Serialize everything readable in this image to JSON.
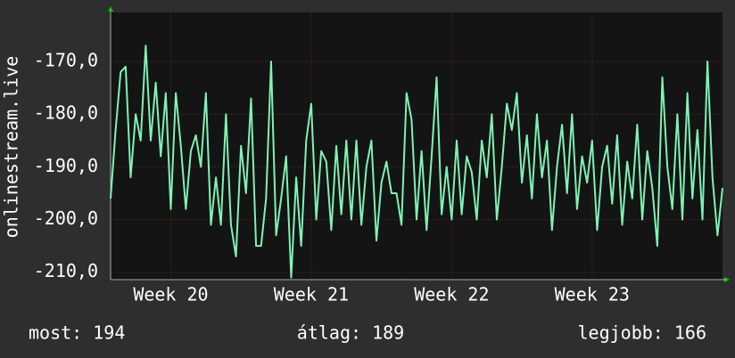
{
  "chart_data": {
    "type": "line",
    "y_label": "onlinestream.live",
    "footer": [
      "most: 194",
      "átlag: 189",
      "legjobb: 166"
    ],
    "x": [
      0,
      0.25,
      0.5,
      0.75,
      1,
      1.25,
      1.5,
      1.75,
      2,
      2.25,
      2.5,
      2.75,
      3,
      3.25,
      3.5,
      3.75,
      4,
      4.25,
      4.5,
      4.75,
      5,
      5.25,
      5.5,
      5.75,
      6,
      6.25,
      6.5,
      6.75,
      7,
      7.25,
      7.5,
      7.75,
      8,
      8.25,
      8.5,
      8.75,
      9,
      9.25,
      9.5,
      9.75,
      10,
      10.25,
      10.5,
      10.75,
      11,
      11.25,
      11.5,
      11.75,
      12,
      12.25,
      12.5,
      12.75,
      13,
      13.25,
      13.5,
      13.75,
      14,
      14.25,
      14.5,
      14.75,
      15,
      15.25,
      15.5,
      15.75,
      16,
      16.25,
      16.5,
      16.75,
      17,
      17.25,
      17.5,
      17.75,
      18,
      18.25,
      18.5,
      18.75,
      19,
      19.25,
      19.5,
      19.75,
      20,
      20.25,
      20.5,
      20.75,
      21,
      21.25,
      21.5,
      21.75,
      22,
      22.25,
      22.5,
      22.75,
      23,
      23.25,
      23.5,
      23.75,
      24,
      24.25,
      24.5,
      24.75,
      25,
      25.25,
      25.5,
      25.75,
      26,
      26.25,
      26.5,
      26.75,
      27,
      27.25,
      27.5,
      27.75,
      28,
      28.25,
      28.5,
      28.75,
      29,
      29.25,
      29.5,
      29.75,
      30,
      30.25,
      30.5
    ],
    "series": [
      {
        "name": "onlinestream.live",
        "color": "#7ff2b4",
        "values": [
          -196,
          -183,
          -172,
          -171,
          -192,
          -180,
          -185,
          -167,
          -185,
          -174,
          -188,
          -176,
          -198,
          -176,
          -186,
          -198,
          -187,
          -184,
          -190,
          -176,
          -201,
          -192,
          -201,
          -180,
          -201,
          -207,
          -186,
          -195,
          -177,
          -205,
          -205,
          -196,
          -170,
          -203,
          -196,
          -188,
          -211,
          -192,
          -205,
          -185,
          -178,
          -200,
          -187,
          -189,
          -202,
          -186,
          -199,
          -185,
          -200,
          -185,
          -201,
          -190,
          -185,
          -204,
          -193,
          -189,
          -195,
          -195,
          -201,
          -176,
          -181,
          -200,
          -187,
          -202,
          -188,
          -173,
          -199,
          -190,
          -200,
          -185,
          -199,
          -188,
          -191,
          -200,
          -185,
          -192,
          -180,
          -200,
          -190,
          -178,
          -183,
          -176,
          -193,
          -184,
          -196,
          -180,
          -192,
          -185,
          -202,
          -190,
          -182,
          -195,
          -180,
          -198,
          -188,
          -193,
          -185,
          -202,
          -190,
          -186,
          -197,
          -184,
          -201,
          -189,
          -196,
          -182,
          -200,
          -187,
          -194,
          -205,
          -173,
          -190,
          -198,
          -180,
          -200,
          -176,
          -196,
          -183,
          -200,
          -170,
          -192,
          -203,
          -194
        ]
      }
    ],
    "xlim": [
      0,
      30.5
    ],
    "xticks": [
      {
        "value": 3,
        "label": "Week 20"
      },
      {
        "value": 10,
        "label": "Week 21"
      },
      {
        "value": 17,
        "label": "Week 22"
      },
      {
        "value": 24,
        "label": "Week 23"
      }
    ],
    "ylim": [
      -211.4,
      -160.7
    ],
    "yticks": [
      {
        "value": -210,
        "label": "-210,0"
      },
      {
        "value": -200,
        "label": "-200,0"
      },
      {
        "value": -190,
        "label": "-190,0"
      },
      {
        "value": -180,
        "label": "-180,0"
      },
      {
        "value": -170,
        "label": "-170,0"
      }
    ],
    "grid": true
  }
}
